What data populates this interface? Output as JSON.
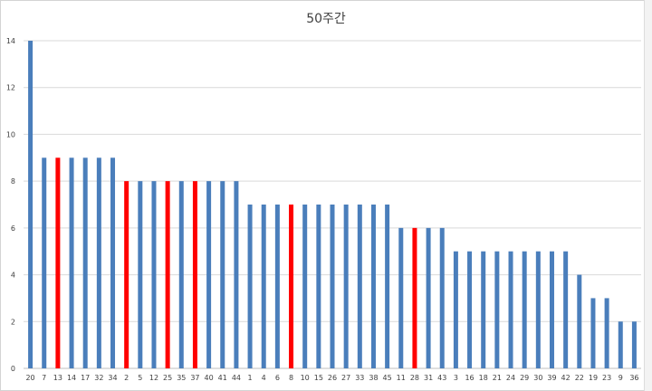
{
  "chart_data": {
    "type": "bar",
    "title": "50주간",
    "xlabel": "",
    "ylabel": "",
    "ylim": [
      0,
      14
    ],
    "yticks": [
      0,
      2,
      4,
      6,
      8,
      10,
      12,
      14
    ],
    "grid": true,
    "legend": "none",
    "categories": [
      "20",
      "7",
      "13",
      "14",
      "17",
      "32",
      "34",
      "2",
      "5",
      "12",
      "25",
      "35",
      "37",
      "40",
      "41",
      "44",
      "1",
      "4",
      "6",
      "8",
      "10",
      "15",
      "26",
      "27",
      "33",
      "38",
      "45",
      "11",
      "28",
      "31",
      "43",
      "3",
      "16",
      "18",
      "21",
      "24",
      "29",
      "30",
      "39",
      "42",
      "22",
      "19",
      "23",
      "9",
      "36"
    ],
    "values": [
      14,
      9,
      9,
      9,
      9,
      9,
      9,
      8,
      8,
      8,
      8,
      8,
      8,
      8,
      8,
      8,
      7,
      7,
      7,
      7,
      7,
      7,
      7,
      7,
      7,
      7,
      7,
      6,
      6,
      6,
      6,
      5,
      5,
      5,
      5,
      5,
      5,
      5,
      5,
      5,
      4,
      3,
      3,
      2,
      2
    ],
    "highlighted": [
      "13",
      "2",
      "25",
      "37",
      "8",
      "28"
    ],
    "colors": {
      "bar": "#4a7ebb",
      "highlight": "#ff0000",
      "grid": "#d9d9d9",
      "axis": "#bfbfbf",
      "text": "#404040"
    }
  }
}
